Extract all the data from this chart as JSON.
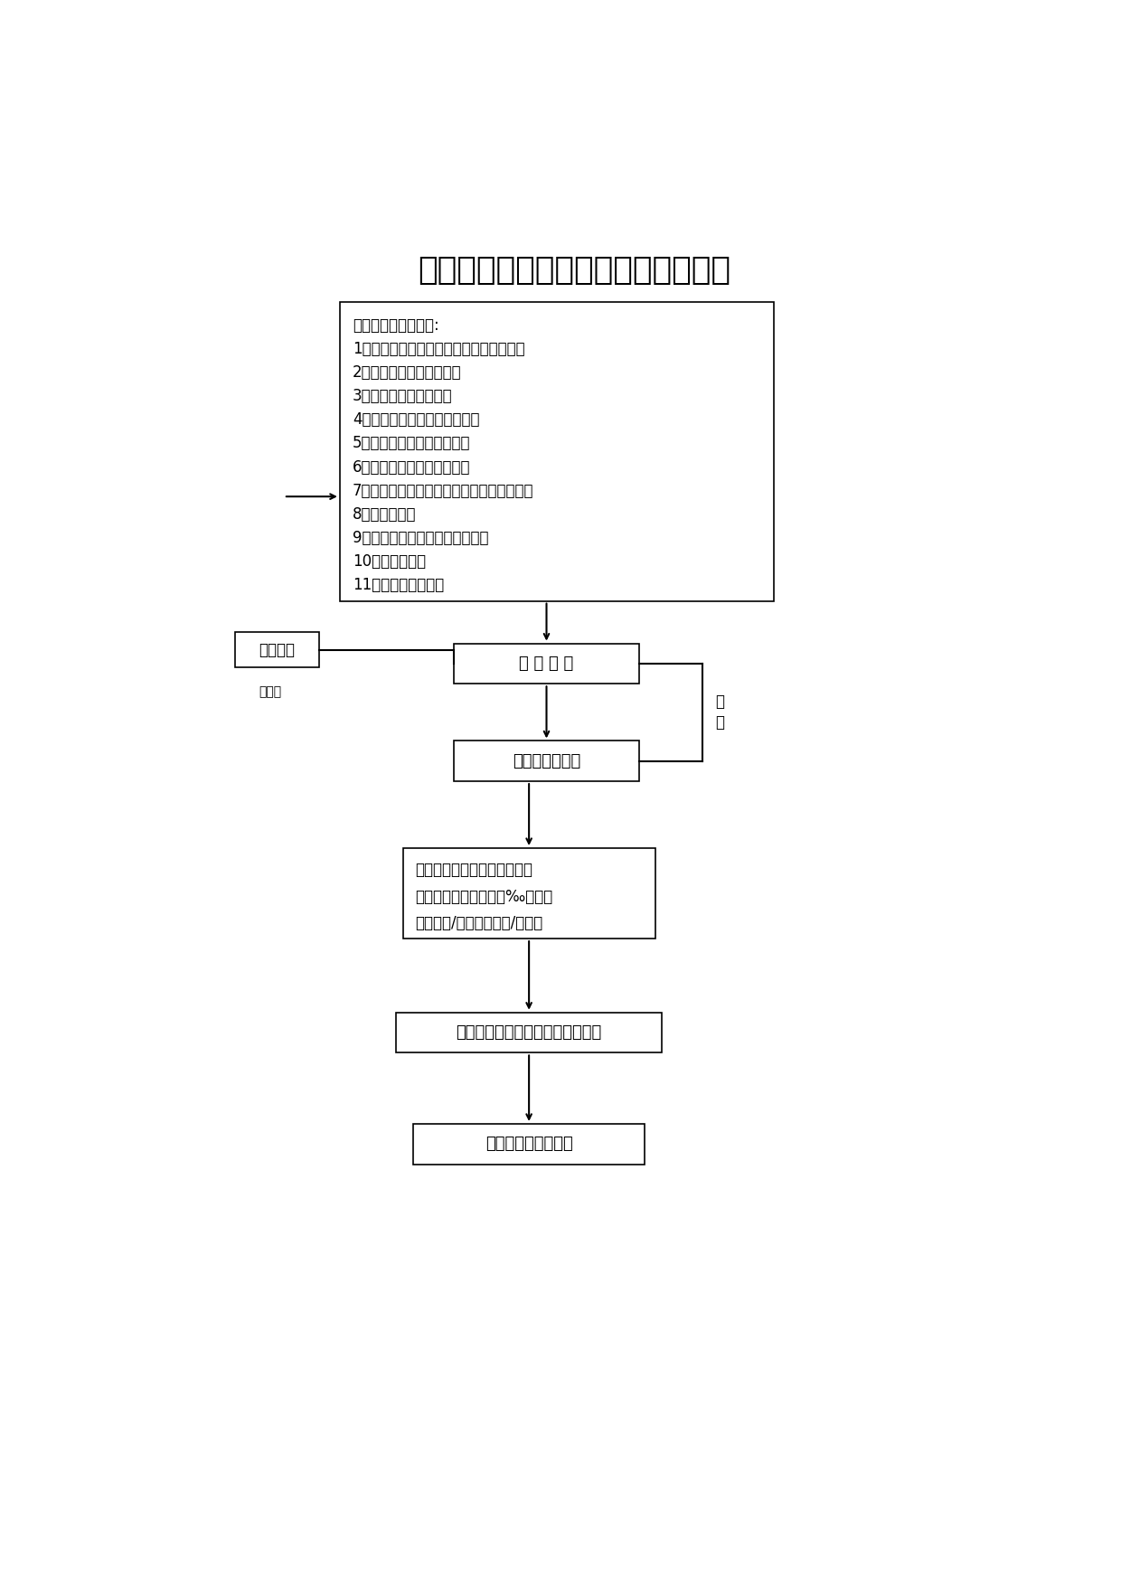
{
  "title": "办理建设工程施工许可证工作流程图",
  "title_fontsize": 26,
  "background_color": "#ffffff",
  "text_color": "#000000",
  "box1_lines": [
    "行政相对人提供资料:",
    "1、环境卫生服务资格证或委托清运合同书",
    "2、建筑工程用地批准手续",
    "3、建设工程规划许可证",
    "4、建设工程施工许可证申请表",
    "5、工程质量、安全监督手续",
    "6、施工、监理合同备案手续",
    "7、施工图、施工图纸审查意见、施工图预算",
    "8、中标通知书",
    "9、建设工程质量目标考核登记表",
    "10、廉政责任书",
    "11、渣土处置许可证"
  ],
  "box2_text": "窗 口 受 理",
  "box3_text": "工程科审核资料",
  "box4_lines": [
    "行政相对人大厅缴费，工程定",
    "额测定费总造价１．２‰、散装",
    "水泥４元/吨，墙改６元/平方米"
  ],
  "box5_text": "窗口批准颁发建设工程施工许可证",
  "box6_text": "相关资料工程科存档",
  "side_box_text": "说明原因",
  "side_note_text": "不允许",
  "side_annotation_line1": "即",
  "side_annotation_line2": "办",
  "font_size_title": 26,
  "font_size_box": 13,
  "font_size_content": 12,
  "font_size_small": 10
}
